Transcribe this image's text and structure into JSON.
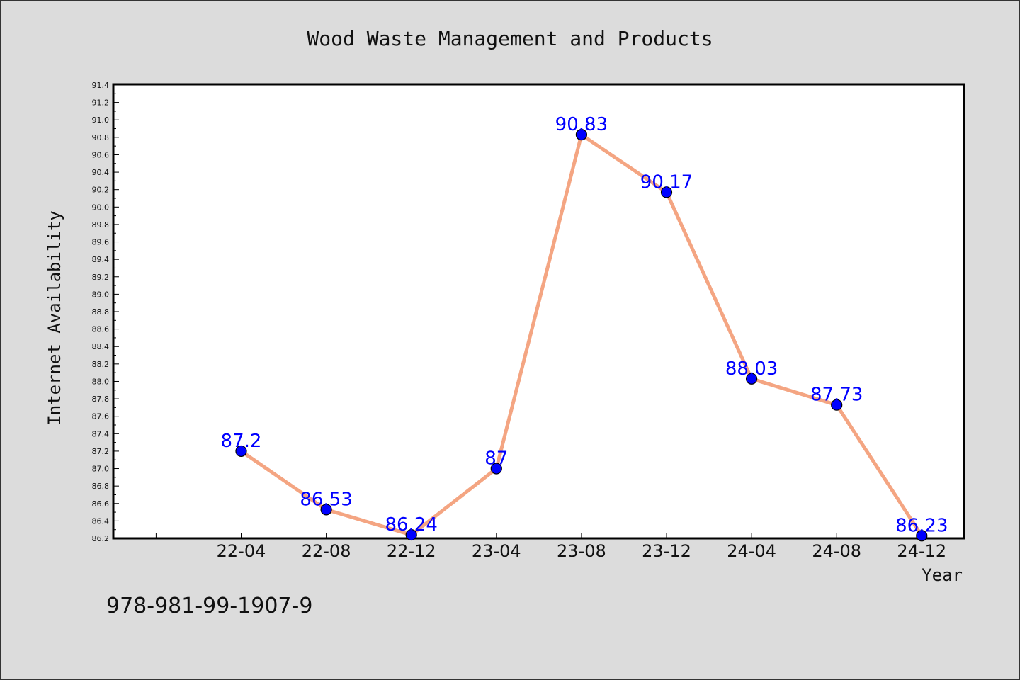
{
  "chart_data": {
    "type": "line",
    "title": "Wood Waste Management and Products",
    "xlabel": "Year",
    "ylabel": "Internet Availability",
    "categories": [
      "22-04",
      "22-08",
      "22-12",
      "23-04",
      "23-08",
      "23-12",
      "24-04",
      "24-08",
      "24-12"
    ],
    "series": [
      {
        "values": [
          87.2,
          86.53,
          86.24,
          87,
          90.83,
          90.17,
          88.03,
          87.73,
          86.23
        ],
        "labels": [
          "87.2",
          "86.53",
          "86.24",
          "87",
          "90.83",
          "90.17",
          "88.03",
          "87.73",
          "86.23"
        ],
        "line_color": "#f4a582",
        "marker_color": "#0000ff"
      }
    ],
    "ylim": [
      86.2,
      91.4
    ],
    "yticks": [
      "86.2",
      "86.4",
      "86.6",
      "86.8",
      "87.0",
      "87.2",
      "87.4",
      "87.6",
      "87.8",
      "88.0",
      "88.2",
      "88.4",
      "88.6",
      "88.8",
      "89.0",
      "89.2",
      "89.4",
      "89.6",
      "89.8",
      "90.0",
      "90.2",
      "90.4",
      "90.6",
      "90.8",
      "91.0",
      "91.2",
      "91.4"
    ],
    "grid": false,
    "data_label_color": "#0000ff"
  },
  "footer": {
    "isbn": "978-981-99-1907-9"
  }
}
